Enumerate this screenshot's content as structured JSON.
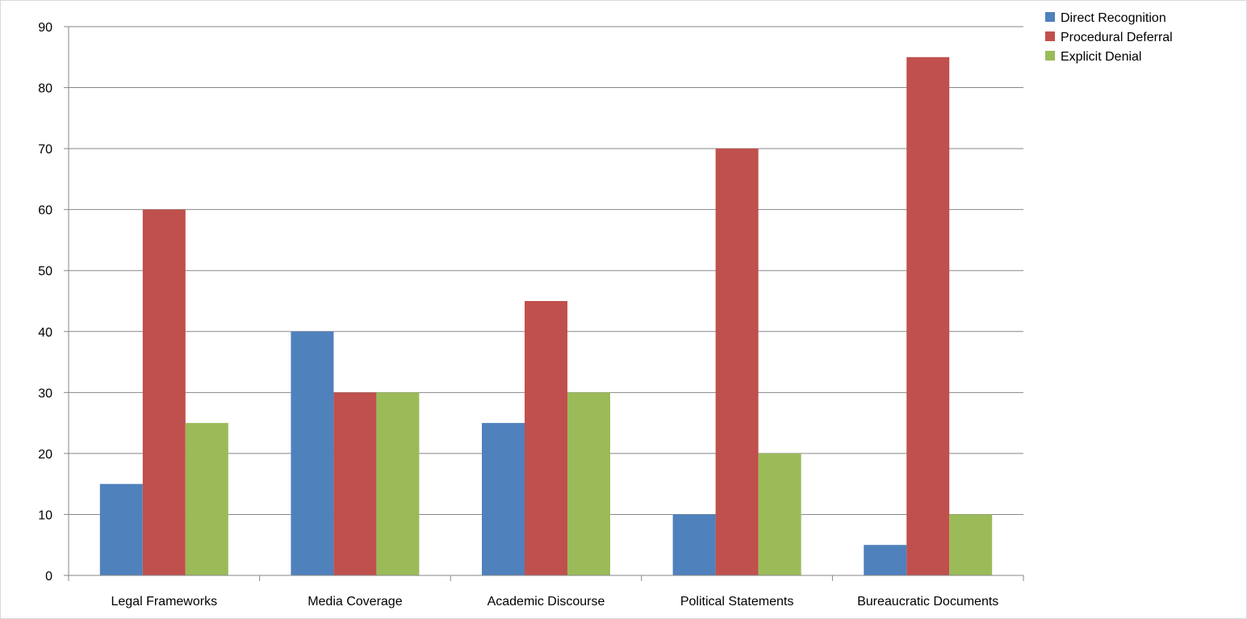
{
  "chart_data": {
    "type": "bar",
    "title": "",
    "xlabel": "",
    "ylabel": "",
    "categories": [
      "Legal Frameworks",
      "Media Coverage",
      "Academic Discourse",
      "Political Statements",
      "Bureaucratic Documents"
    ],
    "series": [
      {
        "name": "Direct Recognition",
        "color": "#4f81bd",
        "values": [
          15,
          40,
          25,
          10,
          5
        ]
      },
      {
        "name": "Procedural Deferral",
        "color": "#c0504d",
        "values": [
          60,
          30,
          45,
          70,
          85
        ]
      },
      {
        "name": "Explicit Denial",
        "color": "#9bbb59",
        "values": [
          25,
          30,
          30,
          20,
          10
        ]
      }
    ],
    "ylim": [
      0,
      90
    ],
    "yticks": [
      0,
      10,
      20,
      30,
      40,
      50,
      60,
      70,
      80,
      90
    ],
    "grid": true,
    "legend_position": "top-right"
  }
}
